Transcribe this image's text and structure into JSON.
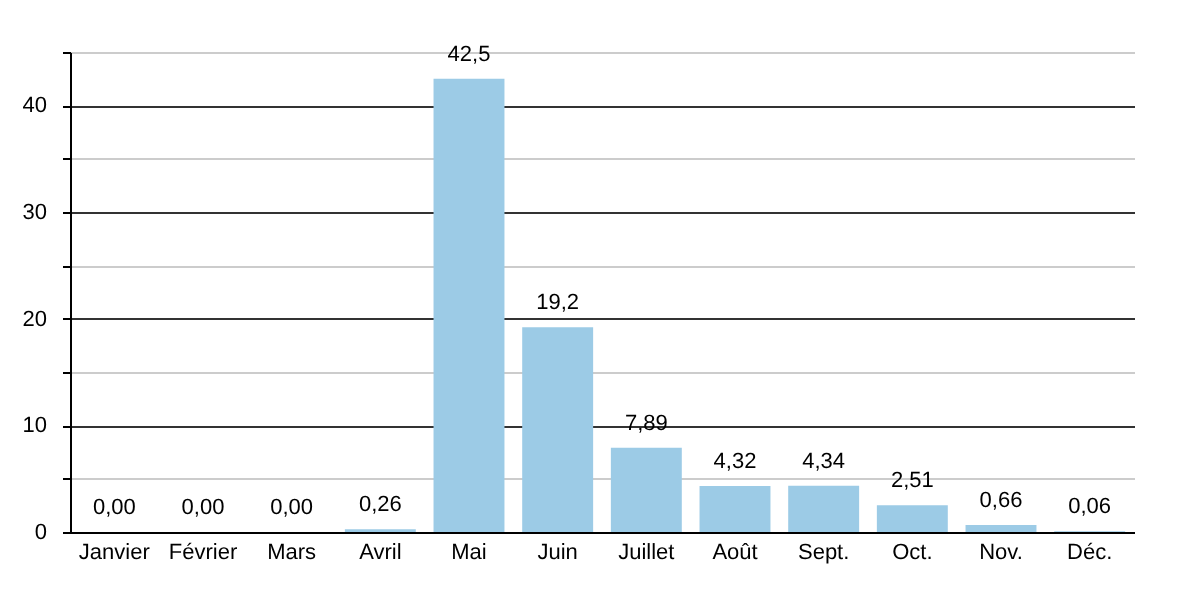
{
  "chart_data": {
    "type": "bar",
    "categories": [
      "Janvier",
      "Février",
      "Mars",
      "Avril",
      "Mai",
      "Juin",
      "Juillet",
      "Août",
      "Sept.",
      "Oct.",
      "Nov.",
      "Déc."
    ],
    "values": [
      0,
      0,
      0,
      0.26,
      42.5,
      19.2,
      7.89,
      4.32,
      4.34,
      2.51,
      0.66,
      0.06
    ],
    "value_labels": [
      "0,00",
      "0,00",
      "0,00",
      "0,26",
      "42,5",
      "19,2",
      "7,89",
      "4,32",
      "4,34",
      "2,51",
      "0,66",
      "0,06"
    ],
    "color": "#9ccbe6",
    "ylim": [
      0,
      45
    ],
    "yticks": [
      0,
      {
        "value": 5,
        "label": null
      },
      10,
      {
        "value": 15,
        "label": null
      },
      20,
      {
        "value": 25,
        "label": null
      },
      30,
      {
        "value": 35,
        "label": null
      },
      40,
      {
        "value": 45,
        "label": null
      }
    ],
    "grid": true
  }
}
